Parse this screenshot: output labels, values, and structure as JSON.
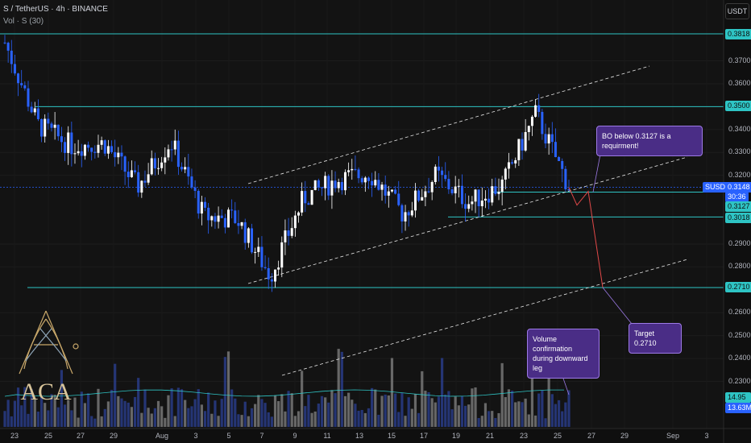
{
  "header": {
    "symbol_line": "S / TetherUS · 4h · BINANCE",
    "indicator_line": "Vol · S (30)"
  },
  "currency": "USDT",
  "y_axis_ticks": [
    "0.3700",
    "0.3600",
    "0.3400",
    "0.3300",
    "0.3200",
    "0.2900",
    "0.2800",
    "0.2600",
    "0.2500",
    "0.2400",
    "0.2300"
  ],
  "price_labels": [
    {
      "text": "0.3818",
      "color": "#2ec4c4"
    },
    {
      "text": "0.3500",
      "color": "#2ec4c4"
    },
    {
      "text": "SUSDT",
      "color": "#2962ff"
    },
    {
      "text": "0.3148",
      "color": "#2962ff"
    },
    {
      "text": "30:36",
      "color": "#2962ff"
    },
    {
      "text": "0.3127",
      "color": "#2ec4c4"
    },
    {
      "text": "0.3018",
      "color": "#2ec4c4"
    },
    {
      "text": "0.2710",
      "color": "#2ec4c4"
    },
    {
      "text": "14.95 M",
      "color": "#2ec4c4"
    },
    {
      "text": "13.63M",
      "color": "#2962ff"
    }
  ],
  "x_axis_ticks": [
    "23",
    "25",
    "27",
    "29",
    "Aug",
    "3",
    "5",
    "7",
    "9",
    "11",
    "13",
    "15",
    "17",
    "19",
    "21",
    "23",
    "25",
    "27",
    "29",
    "Sep",
    "3"
  ],
  "annotations": {
    "breakout": "BO below 0.3127 is a requirment!",
    "target": "Target 0.2710",
    "volume_line1": "Volume confirmation",
    "volume_line2": "during downward leg"
  },
  "logo_text": "ACA",
  "colors": {
    "bull": "#ffffff",
    "bear": "#2962ff",
    "level": "#2ec4c4",
    "projection": "#e04848",
    "callout": "#4a2d86"
  },
  "chart_data": {
    "type": "candlestick",
    "title": "S / TetherUS · 4h · BINANCE",
    "timeframe": "4h",
    "x_ticks": [
      "23",
      "25",
      "27",
      "29",
      "Aug",
      "3",
      "5",
      "7",
      "9",
      "11",
      "13",
      "15",
      "17",
      "19",
      "21",
      "23",
      "25",
      "27",
      "29",
      "Sep",
      "3"
    ],
    "ylim": [
      0.22,
      0.388
    ],
    "horizontal_levels": [
      0.3818,
      0.35,
      0.3127,
      0.3018,
      0.271
    ],
    "current_price": 0.3148,
    "countdown": "30:36",
    "volume": {
      "label": "Vol · S (30)",
      "last": "14.95 M",
      "ma": "13.63M"
    },
    "close_path": [
      [
        "23",
        0.378
      ],
      [
        "25",
        0.342
      ],
      [
        "27",
        0.333
      ],
      [
        "29",
        0.334
      ],
      [
        "31",
        0.315
      ],
      [
        "Aug",
        0.335
      ],
      [
        "3",
        0.302
      ],
      [
        "5",
        0.301
      ],
      [
        "7",
        0.276
      ],
      [
        "9",
        0.31
      ],
      [
        "11",
        0.318
      ],
      [
        "13",
        0.321
      ],
      [
        "15",
        0.303
      ],
      [
        "17",
        0.32
      ],
      [
        "19",
        0.308
      ],
      [
        "21",
        0.316
      ],
      [
        "23",
        0.347
      ],
      [
        "25",
        0.315
      ]
    ],
    "projection": [
      [
        "25",
        0.3148
      ],
      [
        "26",
        0.307
      ],
      [
        "26.5",
        0.313
      ],
      [
        "27",
        0.271
      ]
    ]
  }
}
